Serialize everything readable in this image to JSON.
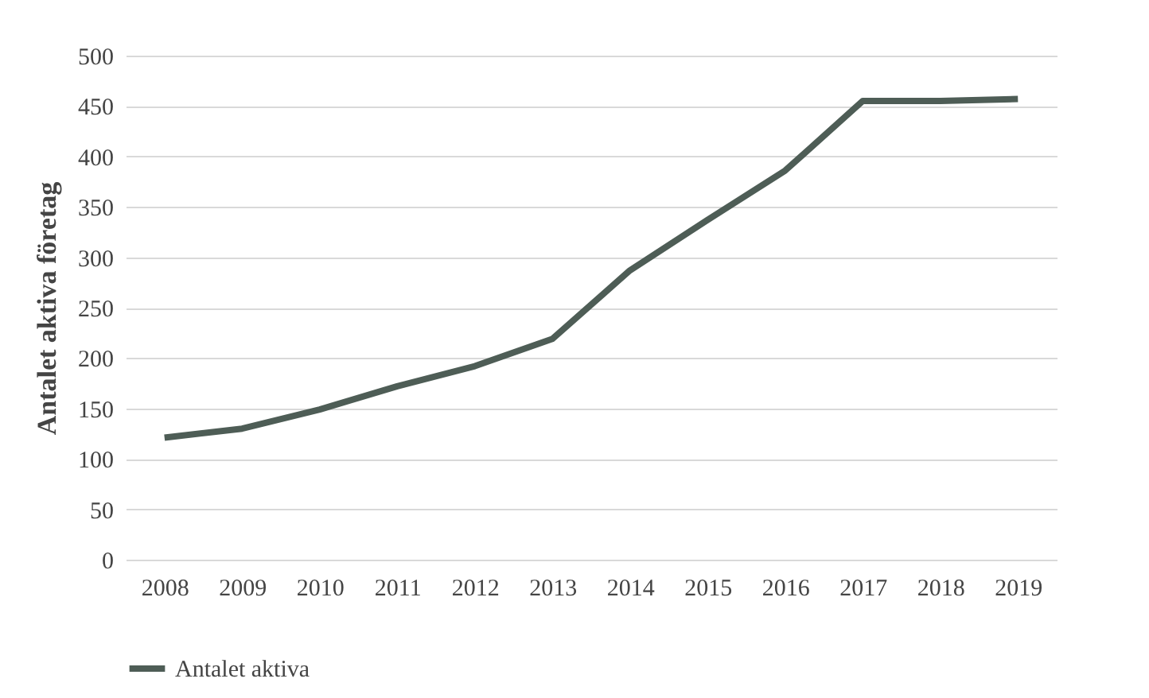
{
  "chart_data": {
    "type": "line",
    "ylabel": "Antalet aktiva företag",
    "categories": [
      "2008",
      "2009",
      "2010",
      "2011",
      "2012",
      "2013",
      "2014",
      "2015",
      "2016",
      "2017",
      "2018",
      "2019"
    ],
    "series": [
      {
        "name": "Antalet aktiva",
        "color": "#4e5d56",
        "values": [
          121,
          130,
          149,
          172,
          192,
          219,
          287,
          337,
          386,
          455,
          455,
          457
        ]
      }
    ],
    "ylim": [
      0,
      500
    ],
    "yticks": [
      0,
      50,
      100,
      150,
      200,
      250,
      300,
      350,
      400,
      450,
      500
    ],
    "grid": "y",
    "legend": "bottom",
    "marker": "none",
    "line_style": "solid"
  }
}
